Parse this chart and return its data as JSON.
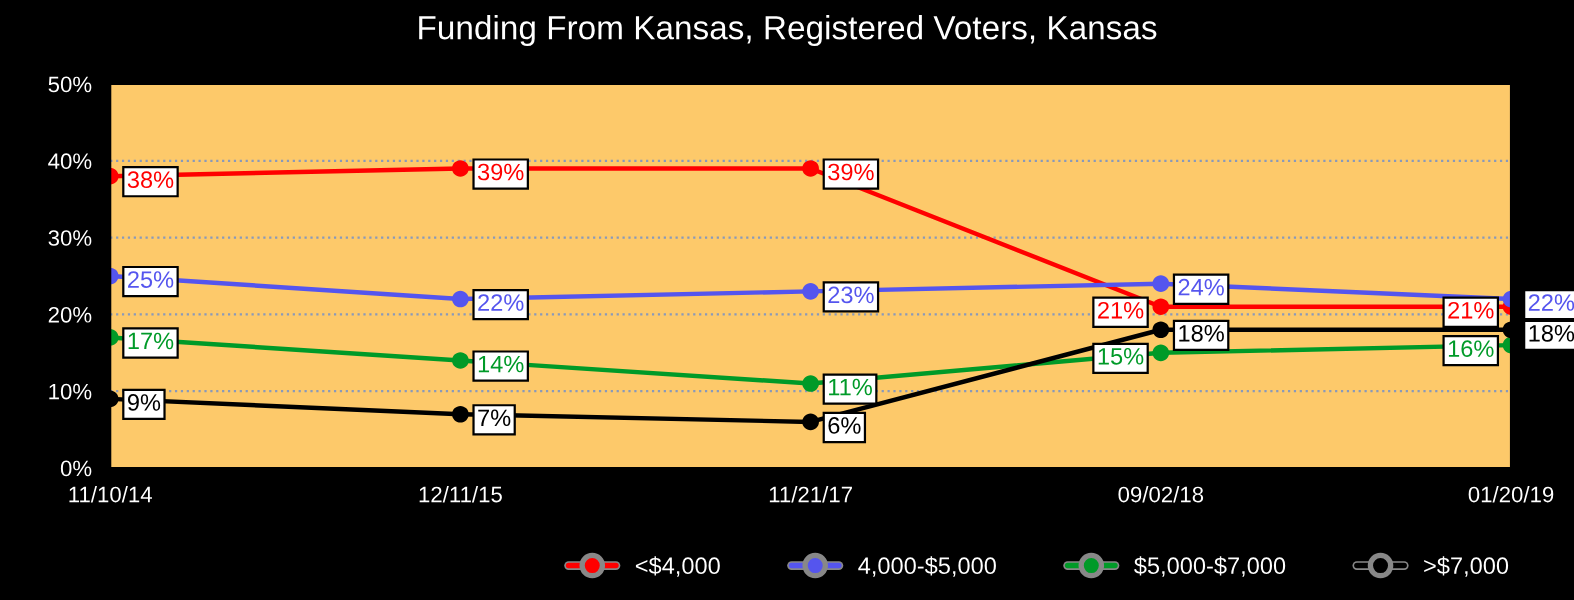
{
  "chart_data": {
    "type": "line",
    "title": "Funding From Kansas, Registered Voters, Kansas",
    "categories": [
      "11/10/14",
      "12/11/15",
      "11/21/17",
      "09/02/18",
      "01/20/19"
    ],
    "series": [
      {
        "name": "<$4,000",
        "color": "#ff0000",
        "values": [
          38,
          39,
          39,
          21,
          21
        ],
        "value_labels": [
          "38%",
          "39%",
          "39%",
          "21%",
          "21%"
        ]
      },
      {
        "name": "4,000-$5,000",
        "color": "#5555ee",
        "values": [
          25,
          22,
          23,
          24,
          22
        ],
        "value_labels": [
          "25%",
          "22%",
          "23%",
          "24%",
          "22%"
        ]
      },
      {
        "name": "$5,000-$7,000",
        "color": "#009a28",
        "values": [
          17,
          14,
          11,
          15,
          16
        ],
        "value_labels": [
          "17%",
          "14%",
          "11%",
          "15%",
          "16%"
        ]
      },
      {
        "name": ">$7,000",
        "color": "#000000",
        "values": [
          9,
          7,
          6,
          18,
          18
        ],
        "value_labels": [
          "9%",
          "7%",
          "6%",
          "18%",
          "18%"
        ]
      }
    ],
    "ylim": [
      0,
      50
    ],
    "yticks": [
      {
        "value": 0,
        "label": "0%"
      },
      {
        "value": 10,
        "label": "10%"
      },
      {
        "value": 20,
        "label": "20%"
      },
      {
        "value": 30,
        "label": "30%"
      },
      {
        "value": 40,
        "label": "40%"
      },
      {
        "value": 50,
        "label": "50%"
      }
    ],
    "grid": "y",
    "legend": "bottom",
    "marker": "circle",
    "line_style": "solid"
  }
}
